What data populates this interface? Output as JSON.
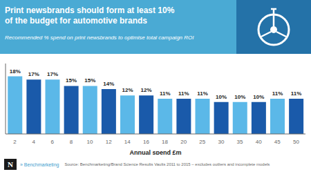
{
  "chart_data": {
    "type": "bar",
    "title": "Print newsbrands should form at least 10%\nof the budget for automotive brands",
    "subtitle": "Recommended % spend on print newsbrands to optimise total campaign ROI",
    "xlabel": "Annual spend £m",
    "categories": [
      "2",
      "4",
      "6",
      "8",
      "10",
      "12",
      "14",
      "16",
      "18",
      "20",
      "25",
      "30",
      "35",
      "40",
      "45",
      "50"
    ],
    "values": [
      18,
      17,
      17,
      15,
      15,
      14,
      12,
      12,
      11,
      11,
      11,
      10,
      10,
      10,
      11,
      11
    ],
    "value_labels": [
      "18%",
      "17%",
      "17%",
      "15%",
      "15%",
      "14%",
      "12%",
      "12%",
      "11%",
      "11%",
      "11%",
      "10%",
      "10%",
      "10%",
      "11%",
      "11%"
    ],
    "colors": [
      "#5bb8e8",
      "#1a5aaa",
      "#5bb8e8",
      "#1a5aaa",
      "#5bb8e8",
      "#1a5aaa",
      "#5bb8e8",
      "#1a5aaa",
      "#5bb8e8",
      "#1a5aaa",
      "#5bb8e8",
      "#1a5aaa",
      "#5bb8e8",
      "#1a5aaa",
      "#5bb8e8",
      "#1a5aaa"
    ],
    "ylim": [
      0,
      22
    ],
    "data_labels": true,
    "tick_labels": "x",
    "grid": false,
    "annotations": [
      "N",
      "» Benchmarketing",
      "Source: Benchmarketing/Brand Science Results Vaults 2011 to 2015 – excludes outliers and incomplete models"
    ]
  }
}
